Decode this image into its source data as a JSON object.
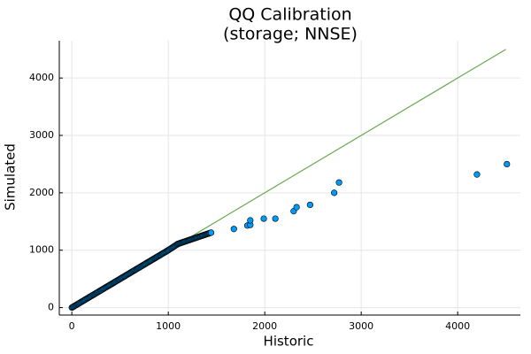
{
  "chart_data": {
    "type": "scatter",
    "title_line1": "QQ Calibration",
    "title_line2": "(storage; NNSE)",
    "xlabel": "Historic",
    "ylabel": "Simulated",
    "xlim": [
      -130,
      4650
    ],
    "ylim": [
      -130,
      4650
    ],
    "xticks": [
      0,
      1000,
      2000,
      3000,
      4000
    ],
    "yticks": [
      0,
      1000,
      2000,
      3000,
      4000
    ],
    "grid": true,
    "legend": "none",
    "colors": {
      "points": "#009af9",
      "point_stroke": "#000000",
      "reference_line": "#6aa84f"
    },
    "reference_line": {
      "x": [
        1200,
        4500
      ],
      "y": [
        1200,
        4500
      ]
    },
    "dense_segments": [
      {
        "x0": 0,
        "x1": 1000,
        "slope": 1.0
      },
      {
        "x0": 1000,
        "x1": 1100,
        "slope": 1.1
      },
      {
        "x0": 1100,
        "x1": 1450,
        "slope": 0.57
      }
    ],
    "points": [
      [
        1680,
        1370
      ],
      [
        1820,
        1430
      ],
      [
        1850,
        1440
      ],
      [
        1850,
        1520
      ],
      [
        1990,
        1550
      ],
      [
        2110,
        1550
      ],
      [
        2300,
        1680
      ],
      [
        2330,
        1750
      ],
      [
        2470,
        1790
      ],
      [
        2720,
        2000
      ],
      [
        2770,
        2180
      ],
      [
        4200,
        2320
      ],
      [
        4510,
        2500
      ]
    ]
  }
}
